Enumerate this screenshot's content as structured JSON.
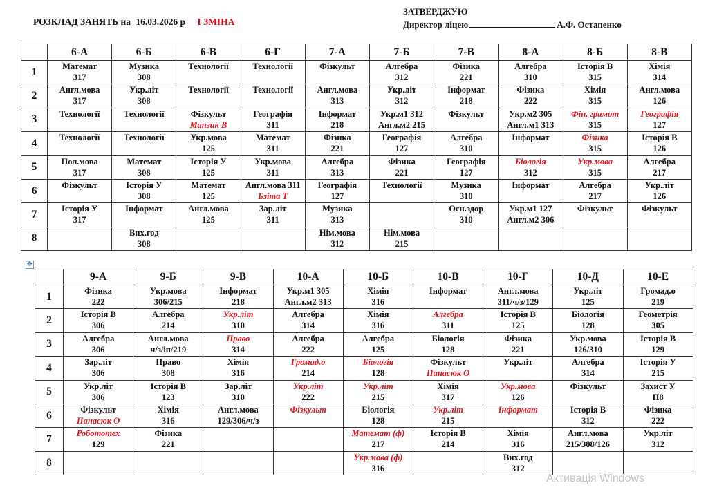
{
  "header": {
    "title": "РОЗКЛАД  ЗАНЯТЬ на",
    "date": "16.03.2026 р",
    "shift": "І ЗМІНА",
    "approve": "ЗАТВЕРДЖУЮ",
    "director_label": "Директор ліцею",
    "director_name": "А.Ф. Остапенко"
  },
  "colors": {
    "text": "#111111",
    "accent_red": "#e0121b",
    "watermark": "#c4c4c4"
  },
  "watermark": "Активація Windows",
  "tables": [
    {
      "classes": [
        "6-А",
        "6-Б",
        "6-В",
        "6-Г",
        "7-А",
        "7-Б",
        "7-В",
        "8-А",
        "8-Б",
        "8-В"
      ],
      "lessons": [
        "1",
        "2",
        "3",
        "4",
        "5",
        "6",
        "7",
        "8"
      ],
      "rows": [
        [
          {
            "lines": [
              "Математ",
              "317"
            ]
          },
          {
            "lines": [
              "Музика",
              "308"
            ]
          },
          {
            "lines": [
              "Технології"
            ]
          },
          {
            "lines": [
              "Технології"
            ]
          },
          {
            "lines": [
              "Фізкульт"
            ]
          },
          {
            "lines": [
              "Алгебра",
              "312"
            ]
          },
          {
            "lines": [
              "Фізика",
              "221"
            ]
          },
          {
            "lines": [
              "Алгебра",
              "310"
            ]
          },
          {
            "lines": [
              "Історія В",
              "315"
            ]
          },
          {
            "lines": [
              "Хімія",
              "314"
            ]
          }
        ],
        [
          {
            "lines": [
              "Англ.мова",
              "317"
            ]
          },
          {
            "lines": [
              "Укр.літ",
              "308"
            ]
          },
          {
            "lines": [
              "Технології"
            ]
          },
          {
            "lines": [
              "Технології"
            ]
          },
          {
            "lines": [
              "Англ.мова",
              "313"
            ]
          },
          {
            "lines": [
              "Укр.літ",
              "312"
            ]
          },
          {
            "lines": [
              "Інформат",
              "218"
            ]
          },
          {
            "lines": [
              "Фізика",
              "222"
            ]
          },
          {
            "lines": [
              "Хімія",
              "315"
            ]
          },
          {
            "lines": [
              "Англ.мова",
              "126"
            ]
          }
        ],
        [
          {
            "lines": [
              "Технології"
            ]
          },
          {
            "lines": [
              "Технології"
            ]
          },
          {
            "lines": [
              "Фізкульт",
              "Манзик В"
            ],
            "red": [
              1
            ]
          },
          {
            "lines": [
              "Географія",
              "311"
            ]
          },
          {
            "lines": [
              "Інформат",
              "218"
            ]
          },
          {
            "lines": [
              "Укр.м1 312",
              "Англ.м2 215"
            ]
          },
          {
            "lines": [
              "Фізкульт"
            ]
          },
          {
            "lines": [
              "Укр.м2  305",
              "Англ.м1 313"
            ]
          },
          {
            "lines": [
              "Фін. грамот",
              "315"
            ],
            "red": [
              0
            ]
          },
          {
            "lines": [
              "Географія",
              "127"
            ],
            "red": [
              0
            ]
          }
        ],
        [
          {
            "lines": [
              "Технології"
            ]
          },
          {
            "lines": [
              "Технології"
            ]
          },
          {
            "lines": [
              "Укр.мова",
              "125"
            ]
          },
          {
            "lines": [
              "Математ",
              "311"
            ]
          },
          {
            "lines": [
              "Фізика",
              "221"
            ]
          },
          {
            "lines": [
              "Географія",
              "127"
            ]
          },
          {
            "lines": [
              "Алгебра",
              "310"
            ]
          },
          {
            "lines": [
              "Інформат"
            ]
          },
          {
            "lines": [
              "Фізика",
              "315"
            ],
            "red": [
              0
            ]
          },
          {
            "lines": [
              "Історія В",
              "126"
            ]
          }
        ],
        [
          {
            "lines": [
              "Пол.мова",
              "317"
            ]
          },
          {
            "lines": [
              "Математ",
              "308"
            ]
          },
          {
            "lines": [
              "Історія У",
              "125"
            ]
          },
          {
            "lines": [
              "Укр.мова",
              "311"
            ]
          },
          {
            "lines": [
              "Алгебра",
              "313"
            ]
          },
          {
            "lines": [
              "Фізика",
              "221"
            ]
          },
          {
            "lines": [
              "Географія",
              "127"
            ]
          },
          {
            "lines": [
              "Біологія",
              "312"
            ],
            "red": [
              0
            ]
          },
          {
            "lines": [
              "Укр.мова",
              "315"
            ],
            "red": [
              0
            ]
          },
          {
            "lines": [
              "Алгебра",
              "217"
            ]
          }
        ],
        [
          {
            "lines": [
              "Фізкульт"
            ]
          },
          {
            "lines": [
              "Історія У",
              "308"
            ]
          },
          {
            "lines": [
              "Математ",
              "125"
            ]
          },
          {
            "lines": [
              "Англ.мова 311",
              "Бзіта Т"
            ],
            "red": [
              1
            ]
          },
          {
            "lines": [
              "Географія",
              "127"
            ]
          },
          {
            "lines": [
              "Технології"
            ]
          },
          {
            "lines": [
              "Музика",
              "310"
            ]
          },
          {
            "lines": [
              "Інформат"
            ]
          },
          {
            "lines": [
              "Алгебра",
              "217"
            ]
          },
          {
            "lines": [
              "Укр.літ",
              "126"
            ]
          }
        ],
        [
          {
            "lines": [
              "Історія У",
              "317"
            ]
          },
          {
            "lines": [
              "Інформат"
            ]
          },
          {
            "lines": [
              "Англ.мова",
              "125"
            ]
          },
          {
            "lines": [
              "Зар.літ",
              "311"
            ]
          },
          {
            "lines": [
              "Музика",
              "313"
            ]
          },
          {
            "lines": []
          },
          {
            "lines": [
              "Осн.здор",
              "310"
            ]
          },
          {
            "lines": [
              "Укр.м1 127",
              "Англ.м2 306"
            ]
          },
          {
            "lines": [
              "Фізкульт"
            ]
          },
          {
            "lines": [
              "Фізкульт"
            ]
          }
        ],
        [
          {
            "lines": []
          },
          {
            "lines": [
              "Вих.год",
              "308"
            ]
          },
          {
            "lines": []
          },
          {
            "lines": []
          },
          {
            "lines": [
              "Нім.мова",
              "312"
            ]
          },
          {
            "lines": [
              "Нім.мова",
              "215"
            ]
          },
          {
            "lines": []
          },
          {
            "lines": []
          },
          {
            "lines": []
          },
          {
            "lines": []
          }
        ]
      ]
    },
    {
      "classes": [
        "9-А",
        "9-Б",
        "9-В",
        "10-А",
        "10-Б",
        "10-В",
        "10-Г",
        "10-Д",
        "10-Е"
      ],
      "lessons": [
        "1",
        "2",
        "3",
        "4",
        "5",
        "6",
        "7",
        "8"
      ],
      "rows": [
        [
          {
            "lines": [
              "Фізика",
              "222"
            ]
          },
          {
            "lines": [
              "Укр.мова",
              "306/215"
            ]
          },
          {
            "lines": [
              "Інформат",
              "218"
            ]
          },
          {
            "lines": [
              "Укр.м1 305",
              "Англ.м2 313"
            ]
          },
          {
            "lines": [
              "Хімія",
              "316"
            ]
          },
          {
            "lines": [
              "Інформат"
            ]
          },
          {
            "lines": [
              "Англ.мова",
              "311/ч/з/129"
            ]
          },
          {
            "lines": [
              "Укр.літ",
              "125"
            ]
          },
          {
            "lines": [
              "Громад.о",
              "219"
            ]
          }
        ],
        [
          {
            "lines": [
              "Історія В",
              "306"
            ]
          },
          {
            "lines": [
              "Алгебра",
              "214"
            ]
          },
          {
            "lines": [
              "Укр.літ",
              "310"
            ],
            "red": [
              0
            ]
          },
          {
            "lines": [
              "Алгебра",
              "314"
            ]
          },
          {
            "lines": [
              "Хімія",
              "316"
            ]
          },
          {
            "lines": [
              "Алгебра",
              "311"
            ],
            "red": [
              0
            ]
          },
          {
            "lines": [
              "Історія В",
              "125"
            ]
          },
          {
            "lines": [
              "Біологія",
              "128"
            ]
          },
          {
            "lines": [
              "Геометрія",
              "305"
            ]
          }
        ],
        [
          {
            "lines": [
              "Алгебра",
              "306"
            ]
          },
          {
            "lines": [
              "Англ.мова",
              "ч/з/іп/219"
            ]
          },
          {
            "lines": [
              "Право",
              "314"
            ],
            "red": [
              0
            ]
          },
          {
            "lines": [
              "Алгебра",
              "222"
            ]
          },
          {
            "lines": [
              "Алгебра",
              "125"
            ]
          },
          {
            "lines": [
              "Біологія",
              "128"
            ]
          },
          {
            "lines": [
              "Фізика",
              "221"
            ]
          },
          {
            "lines": [
              "Укр.мова",
              "126/310"
            ]
          },
          {
            "lines": [
              "Історія В",
              "129"
            ]
          }
        ],
        [
          {
            "lines": [
              "Зар.літ",
              "306"
            ]
          },
          {
            "lines": [
              "Право",
              "308"
            ]
          },
          {
            "lines": [
              "Хімія",
              "316"
            ]
          },
          {
            "lines": [
              "Громад.о",
              "214"
            ],
            "red": [
              0
            ]
          },
          {
            "lines": [
              "Біологія",
              "128"
            ],
            "red": [
              0
            ]
          },
          {
            "lines": [
              "Фізкульт",
              "Панасюк О"
            ],
            "red": [
              1
            ]
          },
          {
            "lines": [
              "Укр.літ"
            ]
          },
          {
            "lines": [
              "Алгебра",
              "314"
            ]
          },
          {
            "lines": [
              "Історія У",
              "215"
            ]
          }
        ],
        [
          {
            "lines": [
              "Укр.літ",
              "306"
            ]
          },
          {
            "lines": [
              "Історія В",
              "123"
            ]
          },
          {
            "lines": [
              "Зар.літ",
              "310"
            ]
          },
          {
            "lines": [
              "Укр.літ",
              "222"
            ],
            "red": [
              0
            ]
          },
          {
            "lines": [
              "Укр.літ",
              "215"
            ],
            "red": [
              0
            ]
          },
          {
            "lines": [
              "Хімія",
              "317"
            ]
          },
          {
            "lines": [
              "Укр.мова",
              "126"
            ],
            "red": [
              0
            ]
          },
          {
            "lines": [
              "Фізкульт"
            ]
          },
          {
            "lines": [
              "Захист У",
              "П8"
            ]
          }
        ],
        [
          {
            "lines": [
              "Фізкульт",
              "Панасюк О"
            ],
            "red": [
              1
            ]
          },
          {
            "lines": [
              "Хімія",
              "316"
            ]
          },
          {
            "lines": [
              "Англ.мова",
              "129/306/ч/з"
            ]
          },
          {
            "lines": [
              "Фізкульт"
            ],
            "red": [
              0
            ]
          },
          {
            "lines": [
              "Біологія",
              "128"
            ]
          },
          {
            "lines": [
              "Укр.літ",
              "215"
            ],
            "red": [
              0
            ]
          },
          {
            "lines": [
              "Інформат"
            ],
            "red": [
              0
            ]
          },
          {
            "lines": [
              "Історія В",
              "312"
            ]
          },
          {
            "lines": [
              "Фізика",
              "222"
            ]
          }
        ],
        [
          {
            "lines": [
              "Робототех",
              "129"
            ],
            "red": [
              0
            ]
          },
          {
            "lines": [
              "Фізика",
              "221"
            ]
          },
          {
            "lines": []
          },
          {
            "lines": []
          },
          {
            "lines": [
              "Математ (ф)",
              "217"
            ],
            "red": [
              0
            ]
          },
          {
            "lines": [
              "Історія В",
              "214"
            ]
          },
          {
            "lines": [
              "Хімія",
              "316"
            ]
          },
          {
            "lines": [
              "Англ.мова",
              "215/308/126"
            ]
          },
          {
            "lines": [
              "Укр.літ",
              "312"
            ]
          }
        ],
        [
          {
            "lines": []
          },
          {
            "lines": []
          },
          {
            "lines": []
          },
          {
            "lines": []
          },
          {
            "lines": [
              "Укр.мова (ф)",
              "316"
            ],
            "red": [
              0
            ]
          },
          {
            "lines": []
          },
          {
            "lines": [
              "Вих.год",
              "312"
            ]
          },
          {
            "lines": []
          },
          {
            "lines": []
          }
        ]
      ]
    }
  ]
}
